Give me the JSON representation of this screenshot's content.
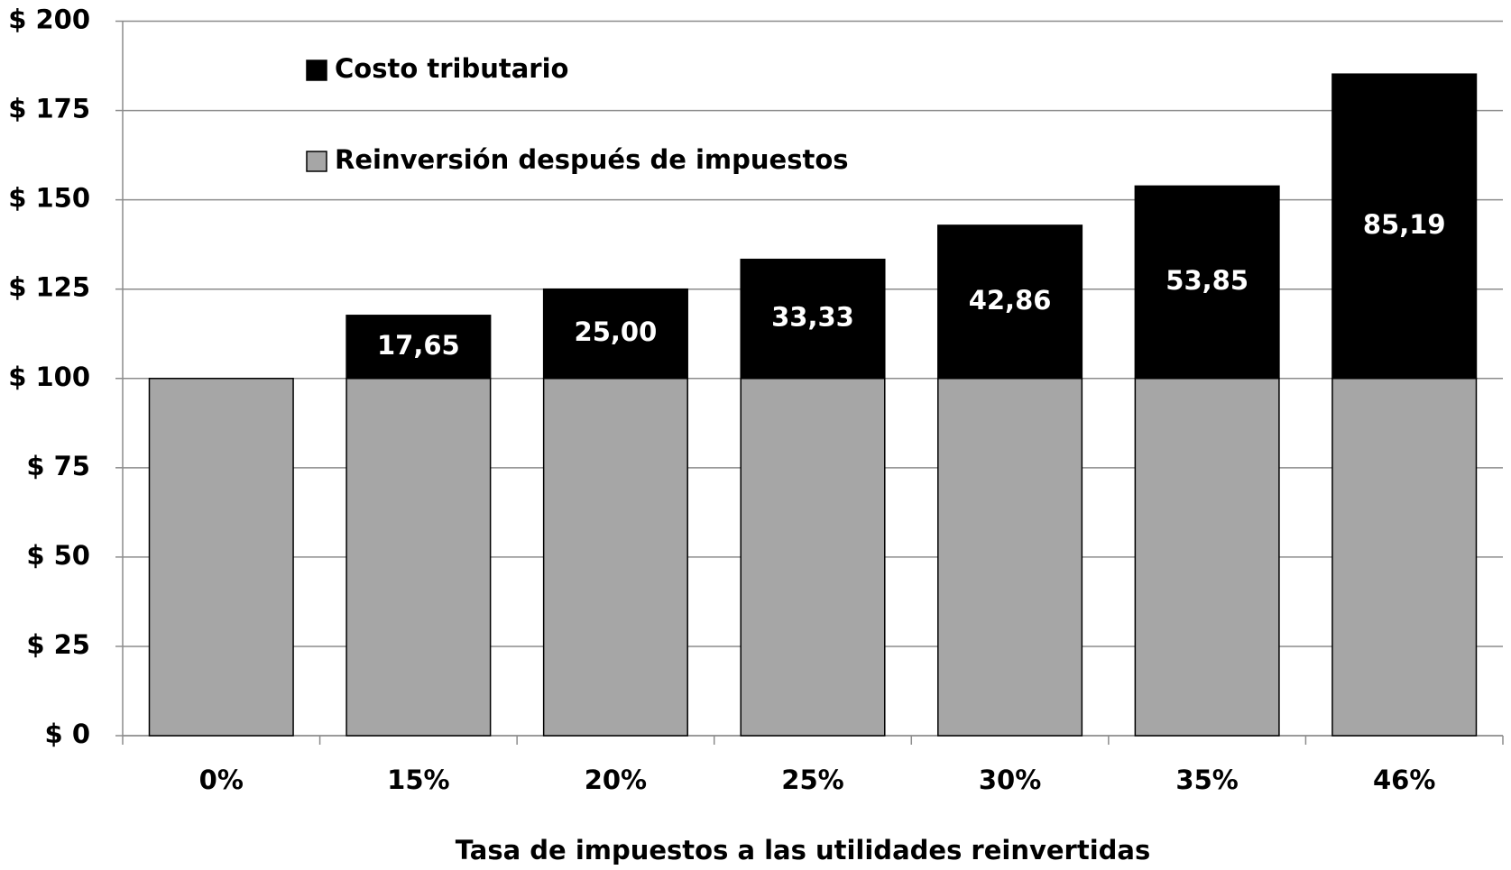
{
  "chart_data": {
    "type": "stacked_bar",
    "x_label": "Tasa de impuestos a las utilidades reinvertidas",
    "categories": [
      "0%",
      "15%",
      "20%",
      "25%",
      "30%",
      "35%",
      "46%"
    ],
    "series": [
      {
        "name": "Reinversión después de impuestos",
        "color": "#a6a6a6",
        "values": [
          100,
          100,
          100,
          100,
          100,
          100,
          100
        ]
      },
      {
        "name": "Costo tributario",
        "color": "#000000",
        "values": [
          null,
          17.65,
          25,
          33.33,
          42.86,
          53.85,
          85.19
        ],
        "value_labels": [
          null,
          "17,65",
          "25,00",
          "33,33",
          "42,86",
          "53,85",
          "85,19"
        ]
      }
    ],
    "ylim": [
      0,
      200
    ],
    "yticks": [
      {
        "value": 0,
        "label": "$ 0"
      },
      {
        "value": 25,
        "label": "$ 25"
      },
      {
        "value": 50,
        "label": "$ 50"
      },
      {
        "value": 75,
        "label": "$ 75"
      },
      {
        "value": 100,
        "label": "$ 100"
      },
      {
        "value": 125,
        "label": "$ 125"
      },
      {
        "value": 150,
        "label": "$ 150"
      },
      {
        "value": 175,
        "label": "$ 175"
      },
      {
        "value": 200,
        "label": "$ 200"
      }
    ],
    "grid": true
  }
}
